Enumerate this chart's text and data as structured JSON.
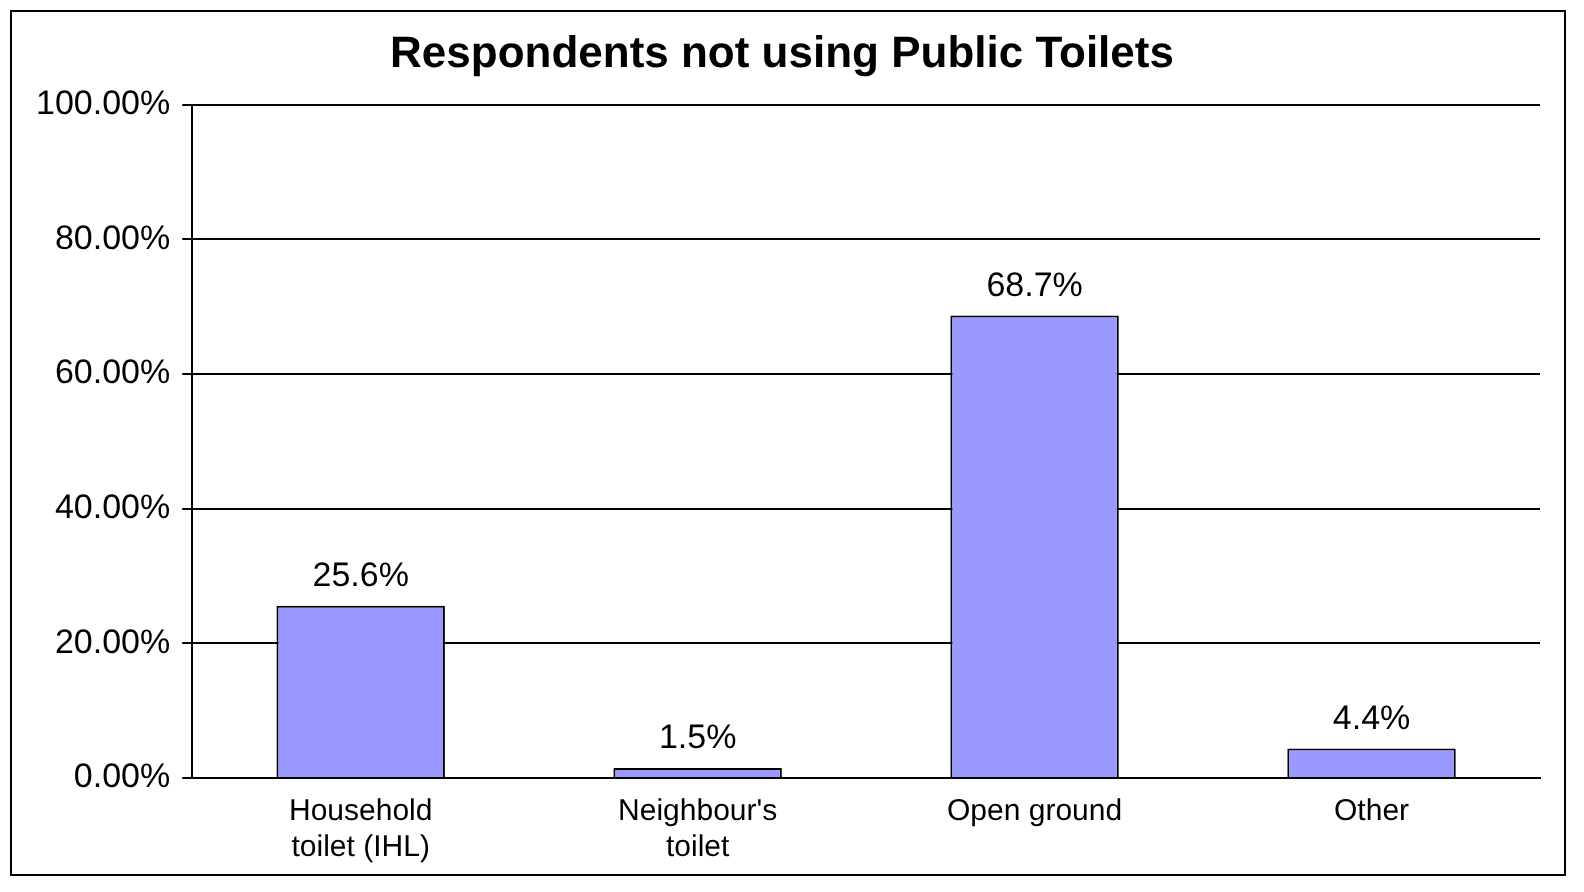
{
  "chart_data": {
    "type": "bar",
    "title": "Respondents not using Public Toilets",
    "categories": [
      "Household toilet (IHL)",
      "Neighbour's toilet",
      "Open ground",
      "Other"
    ],
    "values": [
      25.6,
      1.5,
      68.7,
      4.4
    ],
    "value_labels": [
      "25.6%",
      "1.5%",
      "68.7%",
      "4.4%"
    ],
    "color": "#9999ff",
    "ylim": [
      0,
      100
    ],
    "yticks": [
      {
        "value": 0,
        "label": "0.00%"
      },
      {
        "value": 20,
        "label": "20.00%"
      },
      {
        "value": 40,
        "label": "40.00%"
      },
      {
        "value": 60,
        "label": "60.00%"
      },
      {
        "value": 80,
        "label": "80.00%"
      },
      {
        "value": 100,
        "label": "100.00%"
      }
    ],
    "grid": "y",
    "legend": false
  }
}
